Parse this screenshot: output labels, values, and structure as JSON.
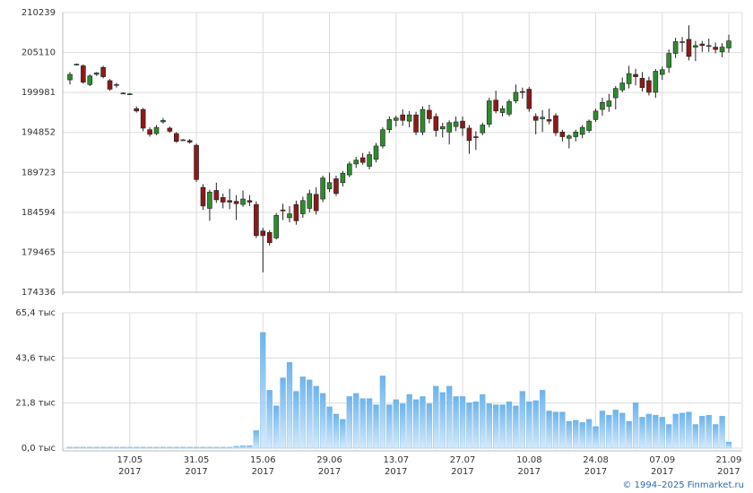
{
  "footer": "© 1994–2025 Finmarket.ru",
  "chart_data": [
    {
      "type": "candlestick",
      "up_color": "#2e8b2e",
      "down_color": "#8b1a1a",
      "ylim": [
        174336,
        210239
      ],
      "yticks": [
        174336,
        179465,
        184594,
        189723,
        194852,
        199981,
        205110,
        210239
      ],
      "grid": true,
      "open": [
        201600,
        203600,
        203400,
        201000,
        202300,
        203200,
        201500,
        200900,
        199900,
        199800,
        197900,
        197800,
        195200,
        194700,
        196200,
        195400,
        194700,
        193900,
        193800,
        193200,
        187800,
        185100,
        187400,
        186500,
        186100,
        186000,
        185600,
        186100,
        185600,
        182200,
        182000,
        181300,
        184900,
        183900,
        185600,
        184400,
        185100,
        186900,
        186300,
        187600,
        188900,
        188400,
        189400,
        190800,
        191600,
        190500,
        191400,
        193100,
        195200,
        196400,
        197100,
        196300,
        197100,
        194900,
        197700,
        196900,
        195300,
        194900,
        195600,
        196300,
        195400,
        194300,
        194800,
        195900,
        199000,
        197400,
        197200,
        198900,
        200100,
        200400,
        196900,
        196600,
        196500,
        197000,
        194900,
        194100,
        194300,
        194600,
        195100,
        196500,
        197800,
        198200,
        199300,
        200300,
        201100,
        202300,
        201800,
        201500,
        200000,
        202300,
        203200,
        205000,
        206400,
        206800,
        205800,
        206200,
        206000,
        205800,
        205200,
        205700
      ],
      "high": [
        202600,
        203700,
        203600,
        202300,
        202600,
        203400,
        201700,
        201200,
        200000,
        199900,
        198200,
        198000,
        195500,
        195800,
        196700,
        195600,
        194900,
        194000,
        194000,
        193400,
        188200,
        187500,
        188400,
        187000,
        187600,
        186800,
        187400,
        186800,
        186000,
        182600,
        182300,
        184500,
        185700,
        185400,
        186100,
        186600,
        187500,
        187800,
        189300,
        189700,
        189300,
        189900,
        191100,
        191700,
        192200,
        192400,
        193500,
        195500,
        196900,
        197000,
        197800,
        197600,
        197500,
        198200,
        198400,
        197300,
        196100,
        196400,
        196900,
        196900,
        195800,
        195000,
        196100,
        199300,
        200200,
        198300,
        199100,
        201000,
        200600,
        200700,
        197300,
        197700,
        197900,
        197300,
        195200,
        194600,
        195200,
        195800,
        196500,
        197900,
        199300,
        199800,
        200800,
        201900,
        203400,
        203000,
        202600,
        202000,
        203000,
        203300,
        205500,
        207000,
        207100,
        208600,
        206600,
        206600,
        206900,
        206400,
        206300,
        207400
      ],
      "low": [
        201000,
        203500,
        201100,
        200800,
        202100,
        201800,
        200200,
        200600,
        199800,
        199700,
        197400,
        195000,
        194300,
        194500,
        196000,
        194800,
        193500,
        193800,
        193400,
        188500,
        184900,
        183500,
        185800,
        185100,
        185000,
        183600,
        185300,
        185400,
        181300,
        176900,
        180300,
        181100,
        183600,
        183300,
        183000,
        183900,
        184600,
        184300,
        185900,
        187200,
        186700,
        187900,
        189100,
        190300,
        190700,
        190100,
        191000,
        192800,
        194800,
        195600,
        195700,
        195500,
        194500,
        194500,
        196000,
        194300,
        194200,
        193300,
        195000,
        194400,
        192100,
        192600,
        194500,
        195500,
        197300,
        196900,
        196900,
        198600,
        199200,
        197500,
        194600,
        194900,
        195900,
        194400,
        193700,
        192800,
        193700,
        194100,
        194800,
        196200,
        197000,
        197500,
        197800,
        200000,
        200500,
        200900,
        200100,
        199600,
        199300,
        201600,
        202500,
        204400,
        205200,
        204100,
        204000,
        205200,
        205200,
        205000,
        204500,
        205100
      ],
      "close": [
        202300,
        203600,
        201300,
        202100,
        202500,
        202000,
        200400,
        201000,
        199900,
        199800,
        197600,
        195400,
        194600,
        195500,
        196400,
        195000,
        193700,
        193900,
        193600,
        188800,
        185400,
        187200,
        186200,
        185900,
        185900,
        185700,
        186300,
        185900,
        181600,
        181600,
        180700,
        184200,
        184800,
        184400,
        183500,
        186100,
        187000,
        184800,
        189000,
        188400,
        187000,
        189600,
        190800,
        191300,
        191000,
        192000,
        193100,
        195200,
        196500,
        196700,
        196400,
        197100,
        194900,
        197800,
        196600,
        195100,
        195600,
        196100,
        196200,
        195400,
        193800,
        194200,
        195800,
        198900,
        197600,
        197900,
        198800,
        200000,
        200000,
        197900,
        196400,
        196800,
        196300,
        194800,
        194300,
        194400,
        194900,
        195500,
        196300,
        197600,
        198700,
        198900,
        200500,
        201200,
        202400,
        202000,
        200600,
        200000,
        202700,
        202900,
        205000,
        206500,
        206500,
        204600,
        206000,
        206000,
        206000,
        205500,
        205800,
        206600
      ]
    },
    {
      "type": "bar",
      "color": "#6db3ec",
      "ylim": [
        0,
        65.4
      ],
      "yticks": [
        {
          "value": 0,
          "label": "0,0 тыс"
        },
        {
          "value": 21.8,
          "label": "21,8 тыс"
        },
        {
          "value": 43.6,
          "label": "43,6 тыс"
        },
        {
          "value": 65.4,
          "label": "65,4 тыс"
        }
      ],
      "grid": true,
      "categories": [
        null,
        null,
        null,
        null,
        null,
        null,
        null,
        null,
        null,
        [
          "17.05",
          "2017"
        ],
        null,
        null,
        null,
        null,
        null,
        null,
        null,
        null,
        null,
        [
          "31.05",
          "2017"
        ],
        null,
        null,
        null,
        null,
        null,
        null,
        null,
        null,
        null,
        [
          "15.06",
          "2017"
        ],
        null,
        null,
        null,
        null,
        null,
        null,
        null,
        null,
        null,
        [
          "29.06",
          "2017"
        ],
        null,
        null,
        null,
        null,
        null,
        null,
        null,
        null,
        null,
        [
          "13.07",
          "2017"
        ],
        null,
        null,
        null,
        null,
        null,
        null,
        null,
        null,
        null,
        [
          "27.07",
          "2017"
        ],
        null,
        null,
        null,
        null,
        null,
        null,
        null,
        null,
        null,
        [
          "10.08",
          "2017"
        ],
        null,
        null,
        null,
        null,
        null,
        null,
        null,
        null,
        null,
        [
          "24.08",
          "2017"
        ],
        null,
        null,
        null,
        null,
        null,
        null,
        null,
        null,
        null,
        [
          "07.09",
          "2017"
        ],
        null,
        null,
        null,
        null,
        null,
        null,
        null,
        null,
        null,
        [
          "21.09",
          "2017"
        ]
      ],
      "values": [
        0.5,
        0.5,
        0.5,
        0.5,
        0.5,
        0.5,
        0.5,
        0.5,
        0.5,
        0.5,
        0.5,
        0.5,
        0.5,
        0.5,
        0.5,
        0.5,
        0.5,
        0.5,
        0.5,
        0.5,
        0.5,
        0.5,
        0.5,
        0.5,
        0.5,
        1.0,
        1.2,
        1.3,
        8.5,
        56,
        28,
        20.5,
        34,
        41.5,
        27.5,
        34.5,
        33,
        30,
        26.5,
        20,
        16.5,
        14,
        25,
        26.5,
        24,
        24,
        21,
        35,
        21,
        23.5,
        21.5,
        26,
        23.5,
        25,
        21.5,
        30,
        27,
        30,
        25,
        25,
        22,
        22.5,
        26,
        21.5,
        21,
        21,
        22.5,
        20.5,
        27.5,
        22.5,
        23,
        28,
        18,
        17.5,
        17.5,
        13,
        13.5,
        12.5,
        14,
        10.5,
        18,
        16,
        18.5,
        17,
        13,
        22,
        15,
        16.5,
        16,
        15,
        11.5,
        16.5,
        17,
        17.5,
        11.5,
        15.5,
        16,
        11.5,
        15.5,
        3
      ]
    }
  ]
}
